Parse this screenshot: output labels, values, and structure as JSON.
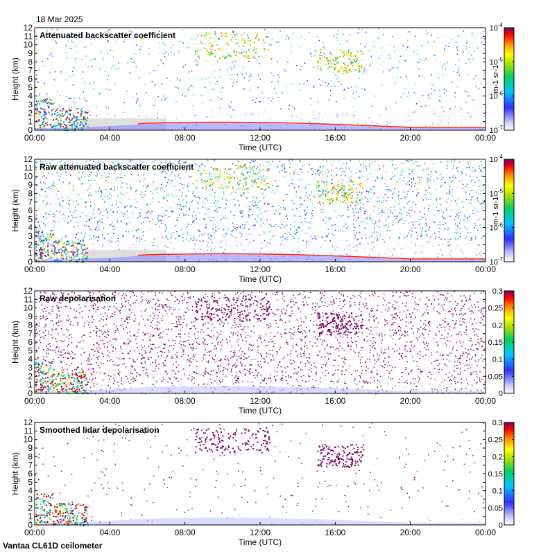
{
  "date": "18 Mar 2025",
  "footer": "Vantaa CL61D ceilometer",
  "chart_data": [
    {
      "type": "heatmap",
      "title": "Attenuated backscatter coefficient",
      "xlabel": "Time (UTC)",
      "ylabel": "Height (km)",
      "xticks": [
        "00:00",
        "04:00",
        "08:00",
        "12:00",
        "16:00",
        "20:00",
        "00:00"
      ],
      "yticks": [
        "0",
        "1",
        "2",
        "3",
        "4",
        "5",
        "6",
        "7",
        "8",
        "9",
        "10",
        "11",
        "12"
      ],
      "ylim": [
        0,
        12
      ],
      "xlim_hours": [
        0,
        24
      ],
      "colorbar": {
        "scale": "log",
        "range": [
          1e-07,
          0.0001
        ],
        "ticks": [
          "10-7",
          "10-6",
          "10-5",
          "10-4"
        ],
        "label": "m-1 sr-1"
      },
      "features": [
        {
          "name": "low cloud / aerosol layer",
          "time_h": [
            0,
            3
          ],
          "height_km": [
            0,
            4
          ]
        },
        {
          "name": "boundary layer",
          "time_h": [
            3,
            24
          ],
          "height_km": [
            0,
            1.5
          ]
        },
        {
          "name": "high cloud",
          "time_h": [
            9,
            13
          ],
          "height_km": [
            8,
            11
          ]
        },
        {
          "name": "high cloud",
          "time_h": [
            15,
            17
          ],
          "height_km": [
            7,
            10
          ]
        }
      ]
    },
    {
      "type": "heatmap",
      "title": "Raw attenuated backscatter coefficient",
      "xlabel": "Time (UTC)",
      "ylabel": "Height (km)",
      "xticks": [
        "00:00",
        "04:00",
        "08:00",
        "12:00",
        "16:00",
        "20:00",
        "00:00"
      ],
      "yticks": [
        "0",
        "1",
        "2",
        "3",
        "4",
        "5",
        "6",
        "7",
        "8",
        "9",
        "10",
        "11",
        "12"
      ],
      "ylim": [
        0,
        12
      ],
      "xlim_hours": [
        0,
        24
      ],
      "colorbar": {
        "scale": "log",
        "range": [
          1e-07,
          0.0001
        ],
        "ticks": [
          "10-7",
          "10-6",
          "10-5",
          "10-4"
        ],
        "label": "m-1 sr-1"
      }
    },
    {
      "type": "heatmap",
      "title": "Raw depolarisation",
      "xlabel": "Time (UTC)",
      "ylabel": "Height (km)",
      "xticks": [
        "00:00",
        "04:00",
        "08:00",
        "12:00",
        "16:00",
        "20:00",
        "00:00"
      ],
      "yticks": [
        "0",
        "1",
        "2",
        "3",
        "4",
        "5",
        "6",
        "7",
        "8",
        "9",
        "10",
        "11",
        "12"
      ],
      "ylim": [
        0,
        12
      ],
      "xlim_hours": [
        0,
        24
      ],
      "colorbar": {
        "scale": "linear",
        "range": [
          0,
          0.3
        ],
        "ticks": [
          "0",
          "0.05",
          "0.1",
          "0.15",
          "0.2",
          "0.25",
          "0.3"
        ],
        "label": ""
      }
    },
    {
      "type": "heatmap",
      "title": "Smoothed lidar depolarisation",
      "xlabel": "Time (UTC)",
      "ylabel": "Height (km)",
      "xticks": [
        "00:00",
        "04:00",
        "08:00",
        "12:00",
        "16:00",
        "20:00",
        "00:00"
      ],
      "yticks": [
        "0",
        "1",
        "2",
        "3",
        "4",
        "5",
        "6",
        "7",
        "8",
        "9",
        "10",
        "11",
        "12"
      ],
      "ylim": [
        0,
        12
      ],
      "xlim_hours": [
        0,
        24
      ],
      "colorbar": {
        "scale": "linear",
        "range": [
          0,
          0.3
        ],
        "ticks": [
          "0",
          "0.05",
          "0.1",
          "0.15",
          "0.2",
          "0.25",
          "0.3"
        ],
        "label": ""
      }
    }
  ]
}
